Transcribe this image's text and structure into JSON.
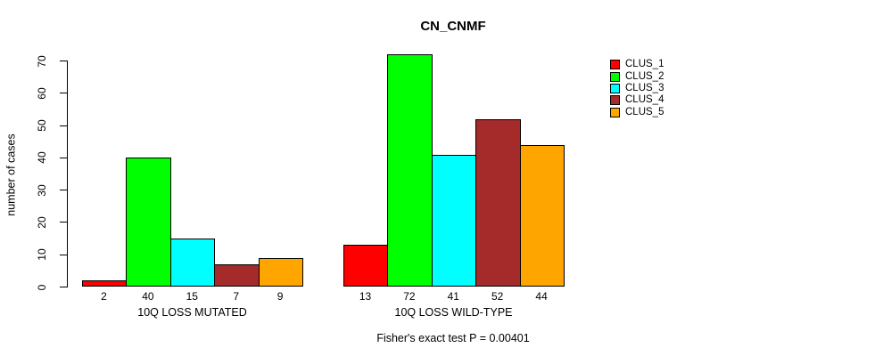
{
  "title": "CN_CNMF",
  "subtitle": "Fisher's exact test P = 0.00401",
  "y_axis": {
    "label": "number of cases"
  },
  "chart_data": {
    "type": "bar",
    "title": "CN_CNMF",
    "xlabel": "",
    "ylabel": "number of cases",
    "ylim": [
      0,
      70
    ],
    "yticks": [
      0,
      10,
      20,
      30,
      40,
      50,
      60,
      70
    ],
    "grid": false,
    "categories": [
      "10Q LOSS MUTATED",
      "10Q LOSS WILD-TYPE"
    ],
    "series": [
      {
        "name": "CLUS_1",
        "color": "#FF0000",
        "values": [
          2,
          13
        ]
      },
      {
        "name": "CLUS_2",
        "color": "#00FF00",
        "values": [
          40,
          72
        ]
      },
      {
        "name": "CLUS_3",
        "color": "#00FFFF",
        "values": [
          15,
          41
        ]
      },
      {
        "name": "CLUS_4",
        "color": "#A52A2A",
        "values": [
          7,
          52
        ]
      },
      {
        "name": "CLUS_5",
        "color": "#FFA500",
        "values": [
          9,
          44
        ]
      }
    ],
    "value_labels_shown": true,
    "bar_border_color": "#000000",
    "legend_position": "right",
    "annotation": "Fisher's exact test P = 0.00401"
  }
}
